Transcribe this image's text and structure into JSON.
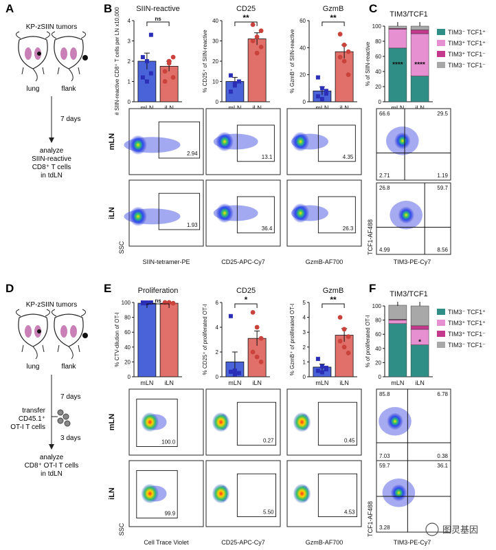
{
  "panels": {
    "A": "A",
    "B": "B",
    "C": "C",
    "D": "D",
    "E": "E",
    "F": "F"
  },
  "schematic_top": {
    "title": "KP-zSIIN tumors",
    "mouse_labels": [
      "lung",
      "flank"
    ],
    "step": "7 days",
    "result": [
      "analyze",
      "SIIN-reactive",
      "CD8⁺ T cells",
      "in tdLN"
    ]
  },
  "schematic_bottom": {
    "title": "KP-zSIIN tumors",
    "mouse_labels": [
      "lung",
      "flank"
    ],
    "step1": "7 days",
    "transfer": [
      "transfer",
      "CD45.1⁺",
      "OT-I T cells"
    ],
    "step2": "3 days",
    "result": [
      "analyze",
      "CD8⁺ OT-I T cells",
      "in tdLN"
    ]
  },
  "colors": {
    "mLN": "#4a63d9",
    "iLN": "#e2706a",
    "mLN_pt": "#2b2fb8",
    "iLN_pt": "#c9433c",
    "tcf_pos_tim_neg": "#2f8f86",
    "tcf_pos_tim_pos": "#e68fd1",
    "tcf_neg_tim_pos": "#c4398e",
    "dn": "#a8a8a8"
  },
  "row_labels": {
    "mLN": "mLN",
    "iLN": "iLN",
    "ssc": "SSC"
  },
  "chart_data": [
    {
      "type": "bar",
      "id": "B1",
      "title": "SIIN-reactive",
      "ylabel": "# SIIN-reactive CD8⁺ T cells per LN x10,000",
      "categories": [
        "mLN",
        "iLN"
      ],
      "values": [
        2.0,
        1.75
      ],
      "errors": [
        0.4,
        0.25
      ],
      "points": [
        [
          1.2,
          2.0,
          3.3,
          2.2,
          1.0,
          1.4
        ],
        [
          1.0,
          2.0,
          2.2,
          1.5,
          1.9,
          1.2
        ]
      ],
      "ylim": [
        0,
        4
      ],
      "yticks": [
        0,
        1,
        2,
        3,
        4
      ],
      "sig": "ns"
    },
    {
      "type": "bar",
      "id": "B2",
      "title": "CD25",
      "ylabel": "% CD25⁺ of SIIN-reactive",
      "categories": [
        "mLN",
        "iLN"
      ],
      "values": [
        10,
        31
      ],
      "errors": [
        2,
        3
      ],
      "points": [
        [
          13,
          8,
          10,
          5,
          9
        ],
        [
          38,
          32,
          27,
          30,
          24,
          35
        ]
      ],
      "ylim": [
        0,
        40
      ],
      "yticks": [
        0,
        10,
        20,
        30,
        40
      ],
      "sig": "**"
    },
    {
      "type": "bar",
      "id": "B3",
      "title": "GzmB",
      "ylabel": "% GzmB⁺ of SIIN-reactive",
      "categories": [
        "mLN",
        "iLN"
      ],
      "values": [
        8,
        37
      ],
      "errors": [
        3,
        5
      ],
      "points": [
        [
          18,
          10,
          6,
          4,
          2,
          8
        ],
        [
          50,
          42,
          37,
          33,
          30,
          20
        ]
      ],
      "ylim": [
        0,
        60
      ],
      "yticks": [
        0,
        20,
        40,
        60
      ],
      "sig": "**"
    },
    {
      "type": "stacked_bar",
      "id": "C",
      "title": "TIM3/TCF1",
      "ylabel": "% of SIIN-reactive",
      "categories": [
        "mLN",
        "iLN"
      ],
      "ylim": [
        0,
        100
      ],
      "yticks": [
        0,
        20,
        40,
        60,
        80,
        100
      ],
      "series": [
        {
          "name": "TIM3⁻ TCF1⁺",
          "values": [
            71,
            34
          ]
        },
        {
          "name": "TIM3⁺ TCF1⁺",
          "values": [
            25,
            56
          ]
        },
        {
          "name": "TIM3⁺ TCF1⁻",
          "values": [
            1,
            5
          ]
        },
        {
          "name": "TIM3⁻ TCF1⁻",
          "values": [
            3,
            5
          ]
        }
      ],
      "stars": [
        "****",
        "****"
      ]
    },
    {
      "type": "bar",
      "id": "E1",
      "title": "Proliferation",
      "ylabel": "% CTV-dilution of OT-I",
      "categories": [
        "mLN",
        "iLN"
      ],
      "values": [
        99,
        99
      ],
      "errors": [
        1,
        1
      ],
      "points": [
        [
          100,
          99,
          100,
          99,
          100
        ],
        [
          100,
          100,
          99,
          100,
          100
        ]
      ],
      "ylim": [
        0,
        100
      ],
      "yticks": [
        0,
        20,
        40,
        60,
        80,
        100
      ],
      "sig": "ns"
    },
    {
      "type": "bar",
      "id": "E2",
      "title": "CD25",
      "ylabel": "% CD25⁺ of proliferated OT-I",
      "categories": [
        "mLN",
        "iLN"
      ],
      "values": [
        1.2,
        3.1
      ],
      "errors": [
        0.8,
        0.6
      ],
      "points": [
        [
          4.9,
          0.5,
          0.3,
          0.4,
          0.2
        ],
        [
          5.2,
          4.0,
          3.1,
          2.0,
          1.6,
          1.2
        ]
      ],
      "ylim": [
        0,
        6
      ],
      "yticks": [
        0,
        2,
        4,
        6
      ],
      "sig": "*"
    },
    {
      "type": "bar",
      "id": "E3",
      "title": "GzmB",
      "ylabel": "% GzmB⁺ of proliferated OT-I",
      "categories": [
        "mLN",
        "iLN"
      ],
      "values": [
        0.65,
        2.8
      ],
      "errors": [
        0.2,
        0.45
      ],
      "points": [
        [
          1.2,
          0.7,
          0.6,
          0.4,
          0.3,
          0.5
        ],
        [
          4.0,
          3.2,
          2.7,
          2.4,
          2.0,
          1.6
        ]
      ],
      "ylim": [
        0,
        5
      ],
      "yticks": [
        0,
        1,
        2,
        3,
        4,
        5
      ],
      "sig": "**"
    },
    {
      "type": "stacked_bar",
      "id": "F",
      "title": "TIM3/TCF1",
      "ylabel": "% of proliferated OT-I",
      "categories": [
        "mLN",
        "iLN"
      ],
      "ylim": [
        0,
        100
      ],
      "yticks": [
        0,
        20,
        40,
        60,
        80,
        100
      ],
      "series": [
        {
          "name": "TIM3⁻ TCF1⁺",
          "values": [
            75,
            45
          ]
        },
        {
          "name": "TIM3⁺ TCF1⁺",
          "values": [
            5,
            22
          ]
        },
        {
          "name": "TIM3⁺ TCF1⁻",
          "values": [
            1,
            5
          ]
        },
        {
          "name": "TIM3⁻ TCF1⁻",
          "values": [
            20,
            28
          ]
        }
      ],
      "stars": [
        "",
        "*"
      ]
    }
  ],
  "flow_top": {
    "xlabels": [
      "SIIN-tetramer-PE",
      "CD25-APC-Cy7",
      "GzmB-AF700"
    ],
    "values": {
      "mLN": [
        "2.94",
        "13.1",
        "4.35"
      ],
      "iLN": [
        "1.93",
        "36.4",
        "26.3"
      ]
    }
  },
  "flow_bottom": {
    "xlabels": [
      "Cell Trace Violet",
      "CD25-APC-Cy7",
      "GzmB-AF700"
    ],
    "values": {
      "mLN": [
        "100.0",
        "0.27",
        "0.45"
      ],
      "iLN": [
        "99.9",
        "5.50",
        "4.53"
      ]
    }
  },
  "quad_top": {
    "xlabel": "TIM3-PE-Cy7",
    "ylabel": "TCF1-AF488",
    "mLN": [
      "66.6",
      "29.5",
      "2.71",
      "1.19"
    ],
    "iLN": [
      "26.8",
      "59.7",
      "4.99",
      "8.56"
    ]
  },
  "quad_bottom": {
    "xlabel": "TIM3-PE-Cy7",
    "ylabel": "TCF1-AF488",
    "mLN": [
      "85.8",
      "6.78",
      "7.03",
      "0.38"
    ],
    "iLN": [
      "59.7",
      "36.1",
      "3.28",
      ""
    ]
  },
  "watermark": "图灵基因"
}
